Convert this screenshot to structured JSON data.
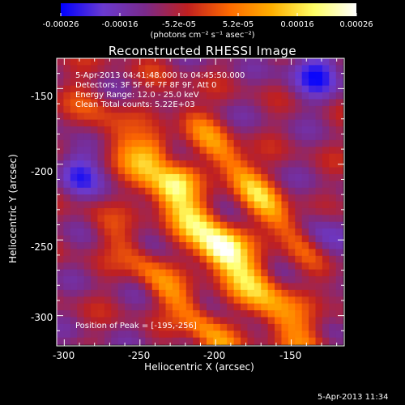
{
  "colorbar": {
    "ticks": [
      "-0.00026",
      "-0.00016",
      "-5.2e-05",
      "5.2e-05",
      "0.00016",
      "0.00026"
    ],
    "units": "(photons cm⁻² s⁻¹ asec⁻²)"
  },
  "info": {
    "time": "5-Apr-2013 04:41:48.000 to 04:45:50.000",
    "detectors": "Detectors: 3F 5F 6F 7F 8F 9F, Att 0",
    "energy": "Energy Range: 12.0 - 25.0 keV",
    "clean": "Clean    Total counts: 5.22E+03",
    "peak": "Position of Peak = [-195,-256]"
  },
  "timestamp": "5-Apr-2013 11:34",
  "chart_data": {
    "type": "heatmap",
    "title": "Reconstructed RHESSI Image",
    "xlabel": "Heliocentric X (arcsec)",
    "ylabel": "Heliocentric Y (arcsec)",
    "xlim": [
      -305,
      -115
    ],
    "ylim": [
      -320,
      -130
    ],
    "xticks": [
      -300,
      -250,
      -200,
      -150
    ],
    "yticks": [
      -150,
      -200,
      -250,
      -300
    ],
    "zlim": [
      -0.00026,
      0.00026
    ],
    "colormap": "red-temperature with blue-violet negatives",
    "peak": [
      -195,
      -256
    ],
    "colors": {
      "stops": [
        "#0000ff",
        "#6a3ad0",
        "#7a2a8a",
        "#c02020",
        "#ff6a00",
        "#ffb000",
        "#ffff66",
        "#ffffff"
      ]
    }
  }
}
